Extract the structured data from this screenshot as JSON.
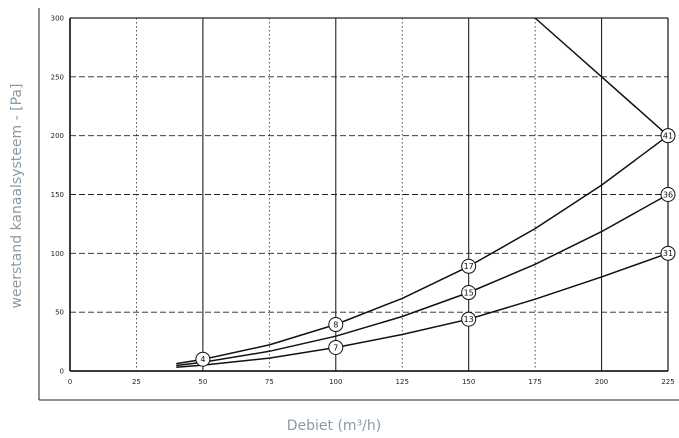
{
  "chart_data": {
    "type": "line",
    "xlabel": "Debiet (m³/h)",
    "ylabel": "weerstand kanaalsysteem - [Pa]",
    "xlim": [
      0,
      225
    ],
    "ylim": [
      0,
      300
    ],
    "x_ticks": [
      0,
      25,
      50,
      75,
      100,
      125,
      150,
      175,
      200,
      225
    ],
    "y_ticks": [
      0,
      50,
      100,
      150,
      200,
      250,
      300
    ],
    "grid": true,
    "series": [
      {
        "x": [
          40,
          50,
          75,
          100,
          125,
          150,
          175,
          200,
          225
        ],
        "y": [
          3.2,
          5,
          11,
          20,
          31,
          44,
          61,
          80,
          100
        ]
      },
      {
        "x": [
          40,
          50,
          75,
          100,
          125,
          150,
          175,
          200,
          225
        ],
        "y": [
          4.7,
          7.4,
          16.7,
          29.6,
          46.3,
          66.7,
          90.7,
          118.5,
          150
        ]
      },
      {
        "x": [
          40,
          50,
          75,
          100,
          125,
          150,
          175,
          200,
          225
        ],
        "y": [
          6.3,
          9.9,
          22.2,
          39.5,
          61.7,
          88.9,
          121,
          158,
          200
        ]
      },
      {
        "x": [
          175,
          200,
          225
        ],
        "y": [
          300,
          250,
          200
        ]
      }
    ],
    "annotations": [
      {
        "label": "4",
        "x": 50,
        "y": 10
      },
      {
        "label": "7",
        "x": 100,
        "y": 20
      },
      {
        "label": "8",
        "x": 100,
        "y": 39.5
      },
      {
        "label": "13",
        "x": 150,
        "y": 44
      },
      {
        "label": "15",
        "x": 150,
        "y": 66.7
      },
      {
        "label": "17",
        "x": 150,
        "y": 89
      },
      {
        "label": "31",
        "x": 225,
        "y": 100
      },
      {
        "label": "36",
        "x": 225,
        "y": 150
      },
      {
        "label": "41",
        "x": 225,
        "y": 200
      }
    ]
  }
}
